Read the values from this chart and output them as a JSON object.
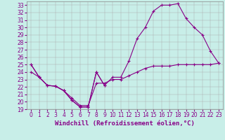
{
  "title": "",
  "xlabel": "Windchill (Refroidissement éolien,°C)",
  "bg_color": "#c8eee8",
  "line_color": "#880088",
  "xlim_min": -0.5,
  "xlim_max": 23.5,
  "ylim_min": 19,
  "ylim_max": 33.5,
  "xticks": [
    0,
    1,
    2,
    3,
    4,
    5,
    6,
    7,
    8,
    9,
    10,
    11,
    12,
    13,
    14,
    15,
    16,
    17,
    18,
    19,
    20,
    21,
    22,
    23
  ],
  "yticks": [
    19,
    20,
    21,
    22,
    23,
    24,
    25,
    26,
    27,
    28,
    29,
    30,
    31,
    32,
    33
  ],
  "curve1_x": [
    0,
    1,
    2,
    3,
    4,
    5,
    6,
    7,
    8,
    9
  ],
  "curve1_y": [
    25.0,
    23.3,
    22.2,
    22.1,
    21.5,
    20.2,
    19.3,
    19.3,
    24.0,
    22.2
  ],
  "curve2_x": [
    0,
    1,
    2,
    3,
    4,
    5,
    6,
    7,
    8,
    9,
    10,
    11,
    12,
    13,
    14,
    15,
    16,
    17,
    18,
    19,
    20,
    21,
    22,
    23
  ],
  "curve2_y": [
    25.0,
    23.3,
    22.2,
    22.1,
    21.5,
    20.2,
    19.3,
    19.3,
    24.0,
    22.2,
    23.3,
    23.3,
    25.5,
    28.5,
    30.0,
    32.2,
    33.0,
    33.0,
    33.2,
    31.2,
    30.0,
    29.0,
    26.8,
    25.2
  ],
  "curve3_x": [
    0,
    1,
    2,
    3,
    4,
    5,
    6,
    7,
    8,
    9,
    10,
    11,
    12,
    13,
    14,
    15,
    16,
    17,
    18,
    19,
    20,
    21,
    22,
    23
  ],
  "curve3_y": [
    24.0,
    23.3,
    22.2,
    22.1,
    21.5,
    20.5,
    19.5,
    19.5,
    22.5,
    22.5,
    23.0,
    23.0,
    23.5,
    24.0,
    24.5,
    24.8,
    24.8,
    24.8,
    25.0,
    25.0,
    25.0,
    25.0,
    25.0,
    25.2
  ],
  "tick_fontsize": 5.5,
  "label_fontsize": 6.5,
  "lw": 0.8,
  "markersize": 3.5,
  "markeredgewidth": 0.8
}
